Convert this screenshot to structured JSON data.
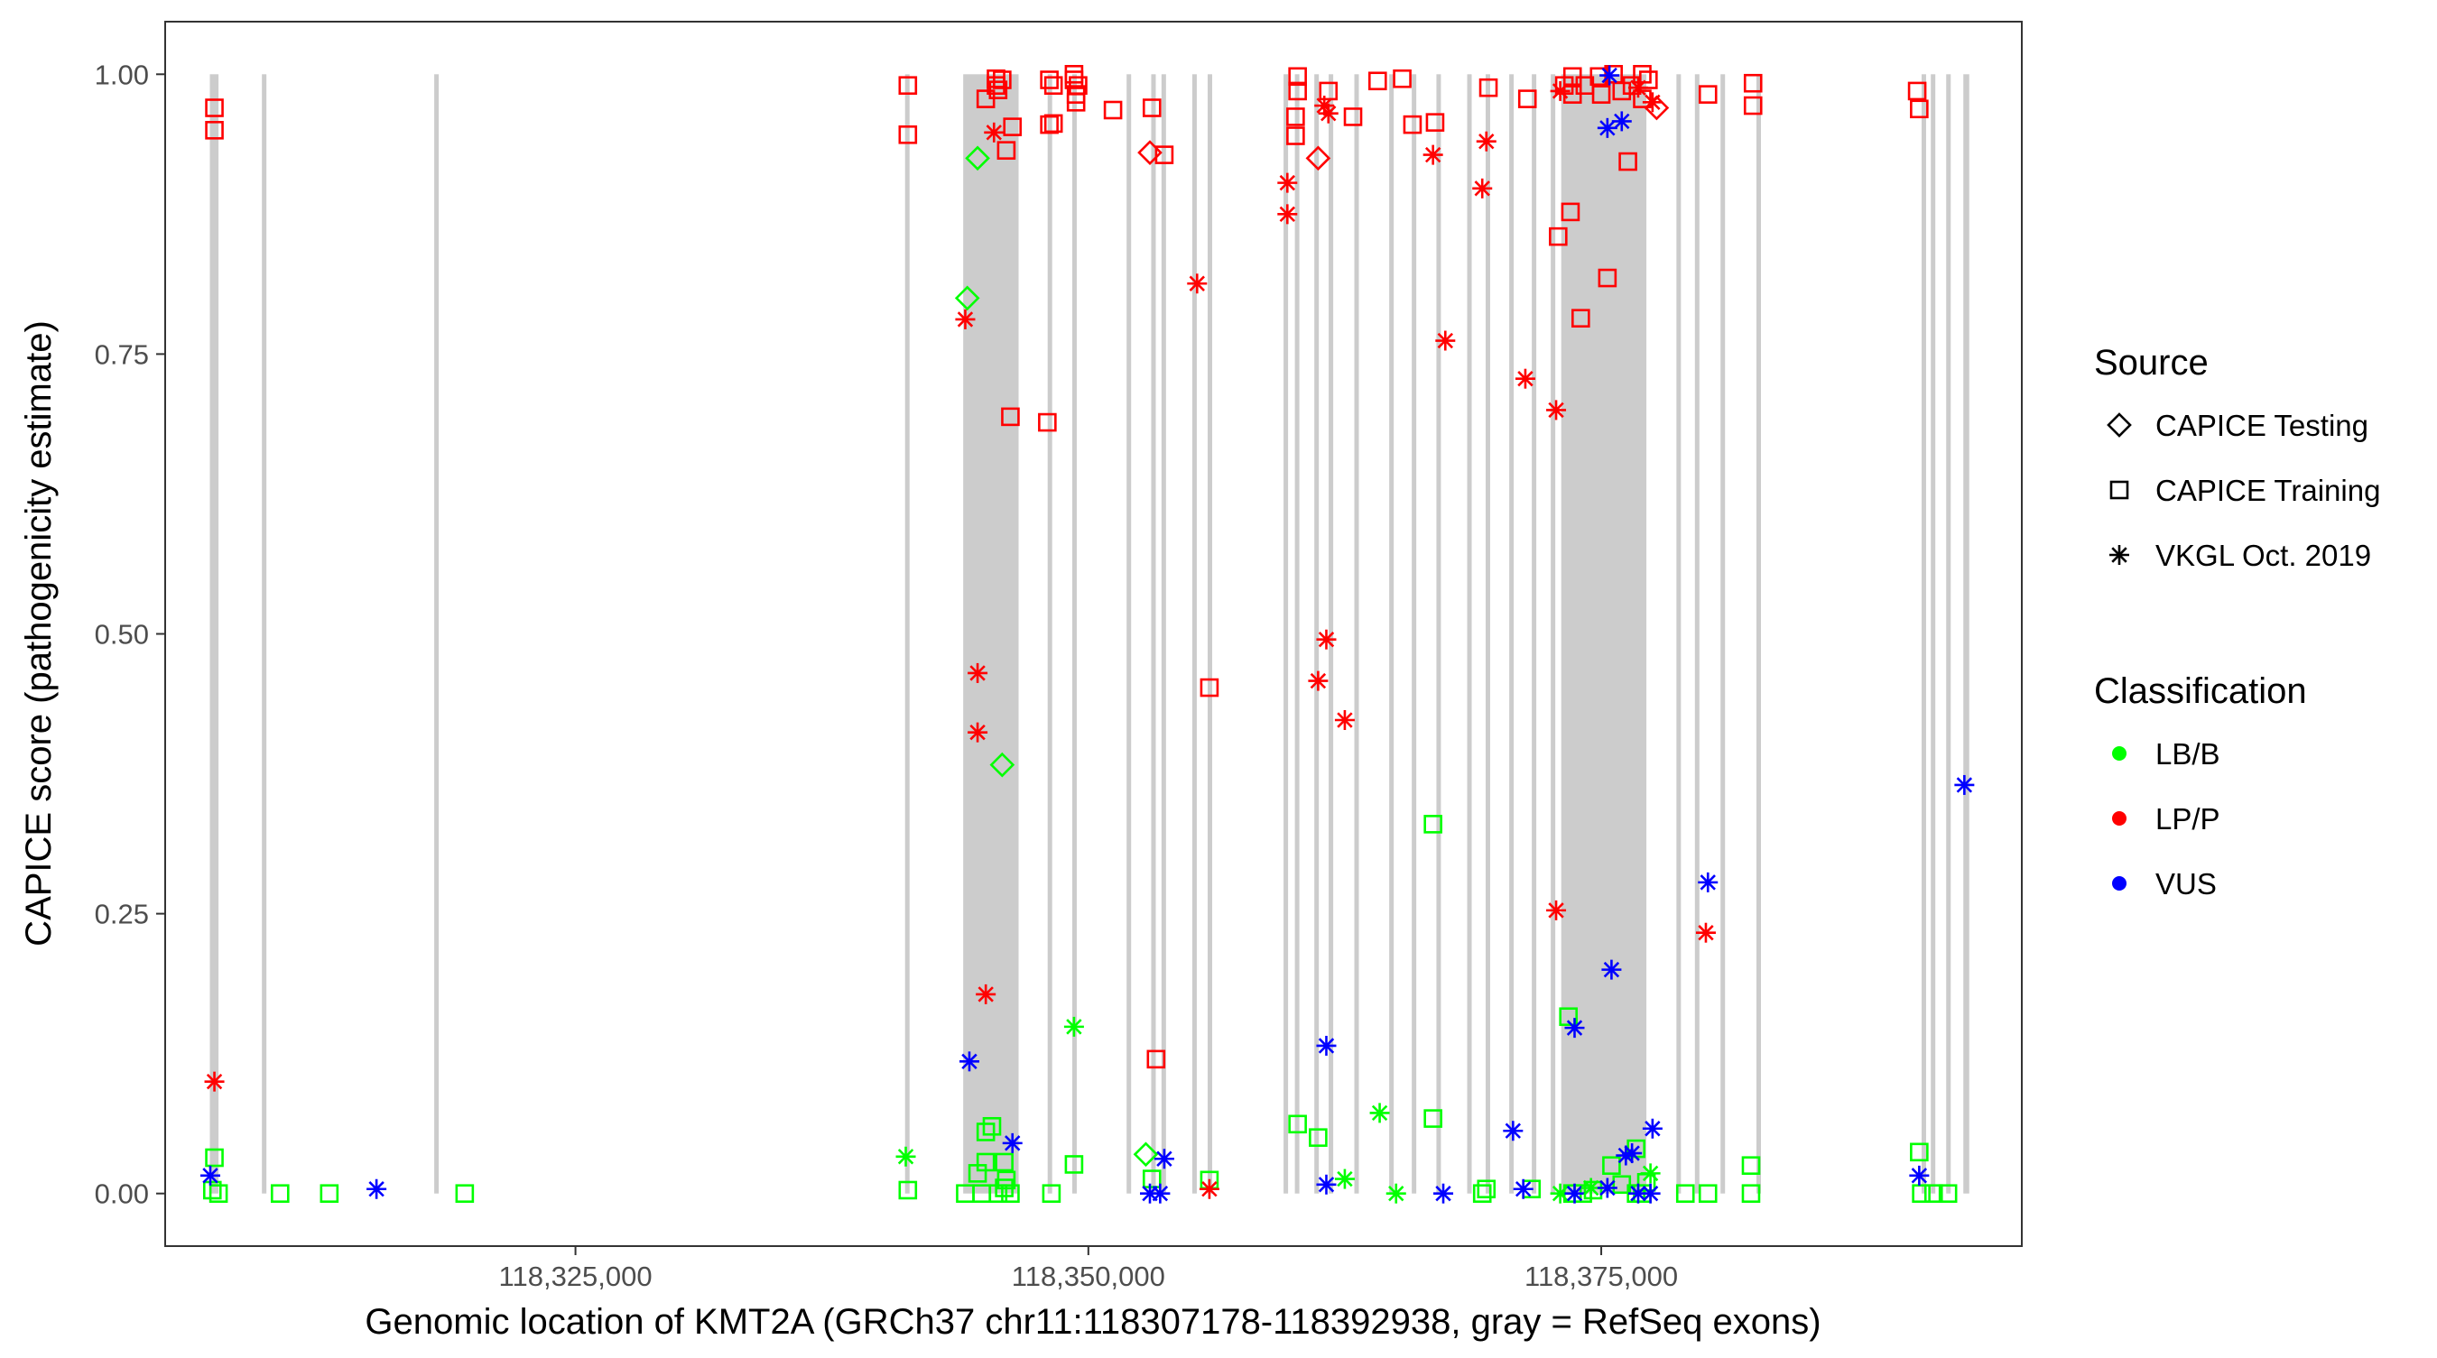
{
  "chart_data": {
    "type": "scatter",
    "xlabel": "Genomic location of KMT2A (GRCh37 chr11:118307178-118392938, gray = RefSeq exons)",
    "ylabel": "CAPICE score (pathogenicity estimate)",
    "xlim": [
      118305000,
      118395500
    ],
    "ylim": [
      -0.047,
      1.047
    ],
    "x_ticks": [
      118325000,
      118350000,
      118375000
    ],
    "x_tick_labels": [
      "118,325,000",
      "118,350,000",
      "118,375,000"
    ],
    "y_ticks": [
      0,
      0.25,
      0.5,
      0.75,
      1
    ],
    "y_tick_labels": [
      "0.00",
      "0.25",
      "0.50",
      "0.75",
      "1.00"
    ],
    "grid": false,
    "exons": [
      [
        118307178,
        118307600
      ],
      [
        118309750,
        118309900
      ],
      [
        118318150,
        118318300
      ],
      [
        118341100,
        118341250
      ],
      [
        118343900,
        118346600
      ],
      [
        118348050,
        118348200
      ],
      [
        118349250,
        118349400
      ],
      [
        118351900,
        118352050
      ],
      [
        118353100,
        118353250
      ],
      [
        118353600,
        118353750
      ],
      [
        118355100,
        118355250
      ],
      [
        118355850,
        118356000
      ],
      [
        118359550,
        118359700
      ],
      [
        118360100,
        118360250
      ],
      [
        118361050,
        118361200
      ],
      [
        118361750,
        118361900
      ],
      [
        118363000,
        118363150
      ],
      [
        118364700,
        118364850
      ],
      [
        118365800,
        118365950
      ],
      [
        118367000,
        118367150
      ],
      [
        118368500,
        118368650
      ],
      [
        118369400,
        118369550
      ],
      [
        118370550,
        118370700
      ],
      [
        118371650,
        118371800
      ],
      [
        118372550,
        118372750
      ],
      [
        118373050,
        118377200
      ],
      [
        118378700,
        118378850
      ],
      [
        118379600,
        118379750
      ],
      [
        118380850,
        118381000
      ],
      [
        118382600,
        118382750
      ],
      [
        118390650,
        118390800
      ],
      [
        118391100,
        118391250
      ],
      [
        118391850,
        118392000
      ],
      [
        118392650,
        118392938
      ]
    ],
    "legend": {
      "position": "right",
      "source_title": "Source",
      "source_items": [
        {
          "label": "CAPICE Testing",
          "shape": "diamond"
        },
        {
          "label": "CAPICE Training",
          "shape": "square"
        },
        {
          "label": "VKGL Oct. 2019",
          "shape": "asterisk"
        }
      ],
      "class_title": "Classification",
      "class_items": [
        {
          "label": "LB/B",
          "color": "#00ff00"
        },
        {
          "label": "LP/P",
          "color": "#ff0000"
        },
        {
          "label": "VUS",
          "color": "#0000ff"
        }
      ]
    },
    "colors": {
      "LB/B": "#00ff00",
      "LP/P": "#ff0000",
      "VUS": "#0000ff",
      "exon": "#cccccc"
    },
    "series": [
      {
        "name": "CAPICE Training",
        "shape": "square",
        "points": [
          [
            118307400,
            0.97,
            "LP/P"
          ],
          [
            118307400,
            0.95,
            "LP/P"
          ],
          [
            118307400,
            0.032,
            "LB/B"
          ],
          [
            118307300,
            0.003,
            "LB/B"
          ],
          [
            118307600,
            0.0,
            "LB/B"
          ],
          [
            118310600,
            0.0,
            "LB/B"
          ],
          [
            118313000,
            0.0,
            "LB/B"
          ],
          [
            118319600,
            0.0,
            "LB/B"
          ],
          [
            118341200,
            0.99,
            "LP/P"
          ],
          [
            118341200,
            0.946,
            "LP/P"
          ],
          [
            118341200,
            0.003,
            "LB/B"
          ],
          [
            118344000,
            0.0,
            "LB/B"
          ],
          [
            118344600,
            0.018,
            "LB/B"
          ],
          [
            118344800,
            0.0,
            "LB/B"
          ],
          [
            118345000,
            0.028,
            "LB/B"
          ],
          [
            118345000,
            0.055,
            "LB/B"
          ],
          [
            118345300,
            0.06,
            "LB/B"
          ],
          [
            118345600,
            0.0,
            "LB/B"
          ],
          [
            118345900,
            0.005,
            "LB/B"
          ],
          [
            118346000,
            0.012,
            "LB/B"
          ],
          [
            118346200,
            0.0,
            "LB/B"
          ],
          [
            118345900,
            0.028,
            "LB/B"
          ],
          [
            118345000,
            0.978,
            "LP/P"
          ],
          [
            118345500,
            0.99,
            "LP/P"
          ],
          [
            118345500,
            0.996,
            "LP/P"
          ],
          [
            118345600,
            0.986,
            "LP/P"
          ],
          [
            118345800,
            0.995,
            "LP/P"
          ],
          [
            118346300,
            0.953,
            "LP/P"
          ],
          [
            118346000,
            0.932,
            "LP/P"
          ],
          [
            118346200,
            0.694,
            "LP/P"
          ],
          [
            118348100,
            0.995,
            "LP/P"
          ],
          [
            118348300,
            0.99,
            "LP/P"
          ],
          [
            118348100,
            0.955,
            "LP/P"
          ],
          [
            118348300,
            0.956,
            "LP/P"
          ],
          [
            118348000,
            0.689,
            "LP/P"
          ],
          [
            118348200,
            0.0,
            "LB/B"
          ],
          [
            118349300,
            1.0,
            "LP/P"
          ],
          [
            118349300,
            0.995,
            "LP/P"
          ],
          [
            118349500,
            0.99,
            "LP/P"
          ],
          [
            118349400,
            0.982,
            "LP/P"
          ],
          [
            118349400,
            0.975,
            "LP/P"
          ],
          [
            118349300,
            0.026,
            "LB/B"
          ],
          [
            118351200,
            0.968,
            "LP/P"
          ],
          [
            118353100,
            0.97,
            "LP/P"
          ],
          [
            118353700,
            0.928,
            "LP/P"
          ],
          [
            118353100,
            0.013,
            "LB/B"
          ],
          [
            118353300,
            0.12,
            "LP/P"
          ],
          [
            118355900,
            0.452,
            "LP/P"
          ],
          [
            118355900,
            0.012,
            "LB/B"
          ],
          [
            118360200,
            0.998,
            "LP/P"
          ],
          [
            118360200,
            0.985,
            "LP/P"
          ],
          [
            118360100,
            0.962,
            "LP/P"
          ],
          [
            118360100,
            0.945,
            "LP/P"
          ],
          [
            118360200,
            0.062,
            "LB/B"
          ],
          [
            118361200,
            0.05,
            "LB/B"
          ],
          [
            118361700,
            0.985,
            "LP/P"
          ],
          [
            118362900,
            0.962,
            "LP/P"
          ],
          [
            118364100,
            0.994,
            "LP/P"
          ],
          [
            118365300,
            0.996,
            "LP/P"
          ],
          [
            118365800,
            0.955,
            "LP/P"
          ],
          [
            118366900,
            0.957,
            "LP/P"
          ],
          [
            118366800,
            0.33,
            "LB/B"
          ],
          [
            118366800,
            0.067,
            "LB/B"
          ],
          [
            118369500,
            0.988,
            "LP/P"
          ],
          [
            118371400,
            0.978,
            "LP/P"
          ],
          [
            118369200,
            0.0,
            "LB/B"
          ],
          [
            118369400,
            0.004,
            "LB/B"
          ],
          [
            118371600,
            0.004,
            "LB/B"
          ],
          [
            118372900,
            0.855,
            "LP/P"
          ],
          [
            118373200,
            0.99,
            "LP/P"
          ],
          [
            118373600,
            0.998,
            "LP/P"
          ],
          [
            118373600,
            0.982,
            "LP/P"
          ],
          [
            118373500,
            0.877,
            "LP/P"
          ],
          [
            118374000,
            0.782,
            "LP/P"
          ],
          [
            118374200,
            0.99,
            "LP/P"
          ],
          [
            118374900,
            0.998,
            "LP/P"
          ],
          [
            118375000,
            0.982,
            "LP/P"
          ],
          [
            118375600,
            1.0,
            "LP/P"
          ],
          [
            118376000,
            0.985,
            "LP/P"
          ],
          [
            118376500,
            0.99,
            "LP/P"
          ],
          [
            118377000,
            1.0,
            "LP/P"
          ],
          [
            118377300,
            0.995,
            "LP/P"
          ],
          [
            118377000,
            0.978,
            "LP/P"
          ],
          [
            118375300,
            0.818,
            "LP/P"
          ],
          [
            118376300,
            0.922,
            "LP/P"
          ],
          [
            118373400,
            0.158,
            "LB/B"
          ],
          [
            118373600,
            0.0,
            "LB/B"
          ],
          [
            118374100,
            0.0,
            "LB/B"
          ],
          [
            118374600,
            0.003,
            "LB/B"
          ],
          [
            118375500,
            0.025,
            "LB/B"
          ],
          [
            118376000,
            0.008,
            "LB/B"
          ],
          [
            118376700,
            0.04,
            "LB/B"
          ],
          [
            118377000,
            0.0,
            "LB/B"
          ],
          [
            118377200,
            0.01,
            "LB/B"
          ],
          [
            118376700,
            0.0,
            "LB/B"
          ],
          [
            118379100,
            0.0,
            "LB/B"
          ],
          [
            118380200,
            0.0,
            "LB/B"
          ],
          [
            118380200,
            0.982,
            "LP/P"
          ],
          [
            118382400,
            0.992,
            "LP/P"
          ],
          [
            118382400,
            0.972,
            "LP/P"
          ],
          [
            118382300,
            0.025,
            "LB/B"
          ],
          [
            118382300,
            0.0,
            "LB/B"
          ],
          [
            118390400,
            0.985,
            "LP/P"
          ],
          [
            118390500,
            0.969,
            "LP/P"
          ],
          [
            118390500,
            0.037,
            "LB/B"
          ],
          [
            118390600,
            0.0,
            "LB/B"
          ],
          [
            118391200,
            0.0,
            "LB/B"
          ],
          [
            118391900,
            0.0,
            "LB/B"
          ]
        ]
      },
      {
        "name": "CAPICE Testing",
        "shape": "diamond",
        "points": [
          [
            118344600,
            0.925,
            "LB/B"
          ],
          [
            118344100,
            0.8,
            "LB/B"
          ],
          [
            118345800,
            0.383,
            "LB/B"
          ],
          [
            118352800,
            0.035,
            "LB/B"
          ],
          [
            118353000,
            0.93,
            "LP/P"
          ],
          [
            118361200,
            0.925,
            "LP/P"
          ],
          [
            118377700,
            0.97,
            "LP/P"
          ]
        ]
      },
      {
        "name": "VKGL Oct. 2019",
        "shape": "asterisk",
        "points": [
          [
            118307200,
            0.016,
            "VUS"
          ],
          [
            118307400,
            0.1,
            "LP/P"
          ],
          [
            118315300,
            0.004,
            "VUS"
          ],
          [
            118341100,
            0.033,
            "LB/B"
          ],
          [
            118344000,
            0.781,
            "LP/P"
          ],
          [
            118344600,
            0.465,
            "LP/P"
          ],
          [
            118344600,
            0.412,
            "LP/P"
          ],
          [
            118345000,
            0.178,
            "LP/P"
          ],
          [
            118344200,
            0.118,
            "VUS"
          ],
          [
            118345400,
            0.948,
            "LP/P"
          ],
          [
            118346300,
            0.045,
            "VUS"
          ],
          [
            118349300,
            0.149,
            "LB/B"
          ],
          [
            118353000,
            0.0,
            "VUS"
          ],
          [
            118353500,
            0.0,
            "VUS"
          ],
          [
            118353700,
            0.031,
            "VUS"
          ],
          [
            118355300,
            0.813,
            "LP/P"
          ],
          [
            118355900,
            0.004,
            "LP/P"
          ],
          [
            118359700,
            0.903,
            "LP/P"
          ],
          [
            118359700,
            0.875,
            "LP/P"
          ],
          [
            118361200,
            0.458,
            "LP/P"
          ],
          [
            118361600,
            0.495,
            "LP/P"
          ],
          [
            118361500,
            0.972,
            "LP/P"
          ],
          [
            118361700,
            0.965,
            "LP/P"
          ],
          [
            118362500,
            0.423,
            "LP/P"
          ],
          [
            118361600,
            0.132,
            "VUS"
          ],
          [
            118361600,
            0.008,
            "VUS"
          ],
          [
            118362500,
            0.013,
            "LB/B"
          ],
          [
            118364200,
            0.072,
            "LB/B"
          ],
          [
            118365000,
            0.0,
            "LB/B"
          ],
          [
            118366800,
            0.928,
            "LP/P"
          ],
          [
            118367400,
            0.762,
            "LP/P"
          ],
          [
            118367300,
            0.0,
            "VUS"
          ],
          [
            118369200,
            0.898,
            "LP/P"
          ],
          [
            118369400,
            0.94,
            "LP/P"
          ],
          [
            118371300,
            0.728,
            "LP/P"
          ],
          [
            118370700,
            0.056,
            "VUS"
          ],
          [
            118371200,
            0.004,
            "VUS"
          ],
          [
            118372800,
            0.7,
            "LP/P"
          ],
          [
            118372800,
            0.253,
            "LP/P"
          ],
          [
            118373000,
            0.0,
            "LB/B"
          ],
          [
            118373700,
            0.148,
            "VUS"
          ],
          [
            118373700,
            0.0,
            "VUS"
          ],
          [
            118374500,
            0.005,
            "LB/B"
          ],
          [
            118375300,
            0.952,
            "VUS"
          ],
          [
            118376000,
            0.958,
            "VUS"
          ],
          [
            118375400,
            0.999,
            "VUS"
          ],
          [
            118376200,
            0.034,
            "VUS"
          ],
          [
            118376500,
            0.036,
            "VUS"
          ],
          [
            118375300,
            0.005,
            "VUS"
          ],
          [
            118375500,
            0.2,
            "VUS"
          ],
          [
            118376800,
            0.0,
            "VUS"
          ],
          [
            118377400,
            0.0,
            "VUS"
          ],
          [
            118377500,
            0.058,
            "VUS"
          ],
          [
            118377400,
            0.018,
            "LB/B"
          ],
          [
            118376800,
            0.988,
            "LP/P"
          ],
          [
            118377500,
            0.975,
            "LP/P"
          ],
          [
            118373000,
            0.985,
            "LP/P"
          ],
          [
            118380200,
            0.278,
            "VUS"
          ],
          [
            118380100,
            0.233,
            "LP/P"
          ],
          [
            118390500,
            0.016,
            "VUS"
          ],
          [
            118392700,
            0.365,
            "VUS"
          ]
        ]
      }
    ]
  }
}
